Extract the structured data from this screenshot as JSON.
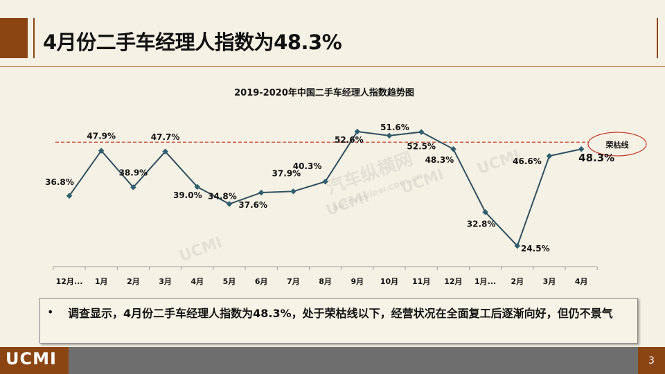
{
  "slide": {
    "title": "4月份二手车经理人指数为48.3%",
    "logo": "UCMI",
    "page_number": "3"
  },
  "note": {
    "bullet": "•",
    "text": "调查显示，4月份二手车经理人指数为48.3%，处于荣枯线以下，经营状况在全面复工后逐渐向好，但仍不景气"
  },
  "watermarks": [
    "UCMI",
    "UCMI",
    "UCMI",
    "UCMI",
    "汽车纵横网",
    "autoreview.com.cn"
  ],
  "colors": {
    "line": "#2f4f5f",
    "marker": "#2f5f6f",
    "threshold": "#c0392b",
    "accent": "#8b4513"
  },
  "chart_data": {
    "type": "line",
    "title": "2019-2020年中国二手车经理人指数趋势图",
    "categories": [
      "12月...",
      "1月",
      "2月",
      "3月",
      "4月",
      "5月",
      "6月",
      "7月",
      "8月",
      "9月",
      "10月",
      "11月",
      "12月",
      "1月...",
      "2月",
      "3月",
      "4月"
    ],
    "values": [
      36.8,
      47.9,
      38.9,
      47.7,
      39.0,
      34.8,
      37.6,
      37.9,
      40.3,
      52.6,
      51.6,
      52.5,
      48.3,
      32.8,
      24.5,
      46.6,
      48.3
    ],
    "data_labels": [
      "36.8%",
      "47.9%",
      "38.9%",
      "47.7%",
      "39.0%",
      "34.8%",
      "37.6%",
      "37.9%",
      "40.3%",
      "52.6%",
      "51.6%",
      "52.5%",
      "48.3%",
      "32.8%",
      "24.5%",
      "46.6%",
      "48.3%"
    ],
    "threshold": {
      "value": 50,
      "label": "荣枯线"
    },
    "ylim": [
      20,
      58
    ],
    "grid": false,
    "legend": "none"
  }
}
